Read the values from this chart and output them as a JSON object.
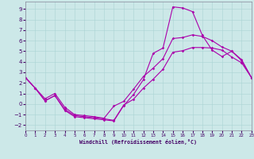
{
  "xlabel": "Windchill (Refroidissement éolien,°C)",
  "xlim": [
    0,
    23
  ],
  "ylim": [
    -2.5,
    9.7
  ],
  "xticks": [
    0,
    1,
    2,
    3,
    4,
    5,
    6,
    7,
    8,
    9,
    10,
    11,
    12,
    13,
    14,
    15,
    16,
    17,
    18,
    19,
    20,
    21,
    22,
    23
  ],
  "yticks": [
    -2,
    -1,
    0,
    1,
    2,
    3,
    4,
    5,
    6,
    7,
    8,
    9
  ],
  "bg_color": "#cce8e8",
  "grid_color": "#aad4d4",
  "line_color": "#aa00aa",
  "curve1_x": [
    0,
    1,
    2,
    3,
    4,
    5,
    6,
    7,
    8,
    9,
    10,
    11,
    12,
    13,
    14,
    15,
    16,
    17,
    18,
    19,
    20,
    21,
    22,
    23
  ],
  "curve1_y": [
    2.5,
    1.5,
    0.3,
    0.8,
    -0.6,
    -1.2,
    -1.3,
    -1.4,
    -1.5,
    -1.6,
    -0.15,
    0.9,
    2.3,
    4.8,
    5.3,
    9.2,
    9.1,
    8.75,
    6.5,
    5.1,
    4.5,
    5.0,
    4.2,
    2.5
  ],
  "curve2_x": [
    0,
    1,
    2,
    3,
    4,
    5,
    6,
    7,
    8,
    9,
    10,
    11,
    12,
    13,
    14,
    15,
    16,
    17,
    18,
    19,
    20,
    21,
    22,
    23
  ],
  "curve2_y": [
    2.5,
    1.5,
    0.5,
    1.0,
    -0.3,
    -1.0,
    -1.1,
    -1.2,
    -1.35,
    -0.2,
    0.25,
    1.4,
    2.6,
    3.4,
    4.3,
    6.2,
    6.3,
    6.55,
    6.4,
    6.0,
    5.4,
    5.0,
    4.1,
    2.5
  ],
  "curve3_x": [
    0,
    1,
    2,
    3,
    4,
    5,
    6,
    7,
    8,
    9,
    10,
    11,
    12,
    13,
    14,
    15,
    16,
    17,
    18,
    19,
    20,
    21,
    22,
    23
  ],
  "curve3_y": [
    2.5,
    1.5,
    0.3,
    0.8,
    -0.5,
    -1.1,
    -1.2,
    -1.3,
    -1.4,
    -1.55,
    -0.1,
    0.45,
    1.5,
    2.35,
    3.3,
    4.9,
    5.05,
    5.35,
    5.35,
    5.3,
    5.1,
    4.45,
    3.9,
    2.5
  ]
}
